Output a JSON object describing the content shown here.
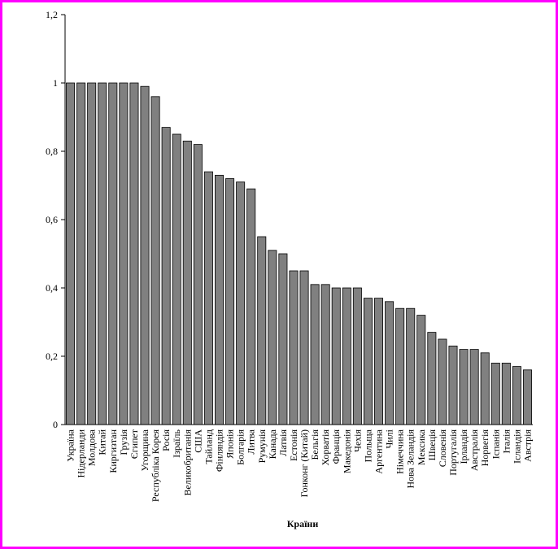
{
  "colors": {
    "frame": "#ff00ff",
    "bar": "#808080",
    "bar_shadow": "#4d4d4d",
    "axis": "#000000"
  },
  "chart_data": {
    "type": "bar",
    "title": "",
    "xlabel": "Країни",
    "ylabel": "",
    "ylim": [
      0,
      1.2
    ],
    "yticks": [
      "0",
      "0,2",
      "0,4",
      "0,6",
      "0,8",
      "1",
      "1,2"
    ],
    "grid": false,
    "legend": "none",
    "categories": [
      "Україна",
      "Нідерланди",
      "Молдова",
      "Китай",
      "Киргизтан",
      "Грузія",
      "Єгипет",
      "Угорщина",
      "Республіка Корея",
      "Росія",
      "Ізраїль",
      "Великобританія",
      "США",
      "Тайланд",
      "Фінляндія",
      "Японія",
      "Болгарія",
      "Литва",
      "Румунія",
      "Канада",
      "Латвія",
      "Естонія",
      "Гонконг (Китай)",
      "Бельгія",
      "Хорватія",
      "Франція",
      "Македонія",
      "Чехія",
      "Польща",
      "Аргентина",
      "Чилі",
      "Німеччина",
      "Нова Зеландія",
      "Мексика",
      "Швеція",
      "Словенія",
      "Португалія",
      "Ірландія",
      "Австралія",
      "Норвегія",
      "Іспанія",
      "Італія",
      "Ісландія",
      "Австрія"
    ],
    "values": [
      1.0,
      1.0,
      1.0,
      1.0,
      1.0,
      1.0,
      1.0,
      0.99,
      0.96,
      0.87,
      0.85,
      0.83,
      0.82,
      0.74,
      0.73,
      0.72,
      0.71,
      0.69,
      0.55,
      0.51,
      0.5,
      0.45,
      0.45,
      0.41,
      0.41,
      0.4,
      0.4,
      0.4,
      0.37,
      0.37,
      0.36,
      0.34,
      0.34,
      0.32,
      0.27,
      0.25,
      0.23,
      0.22,
      0.22,
      0.21,
      0.18,
      0.18,
      0.17,
      0.16
    ]
  }
}
